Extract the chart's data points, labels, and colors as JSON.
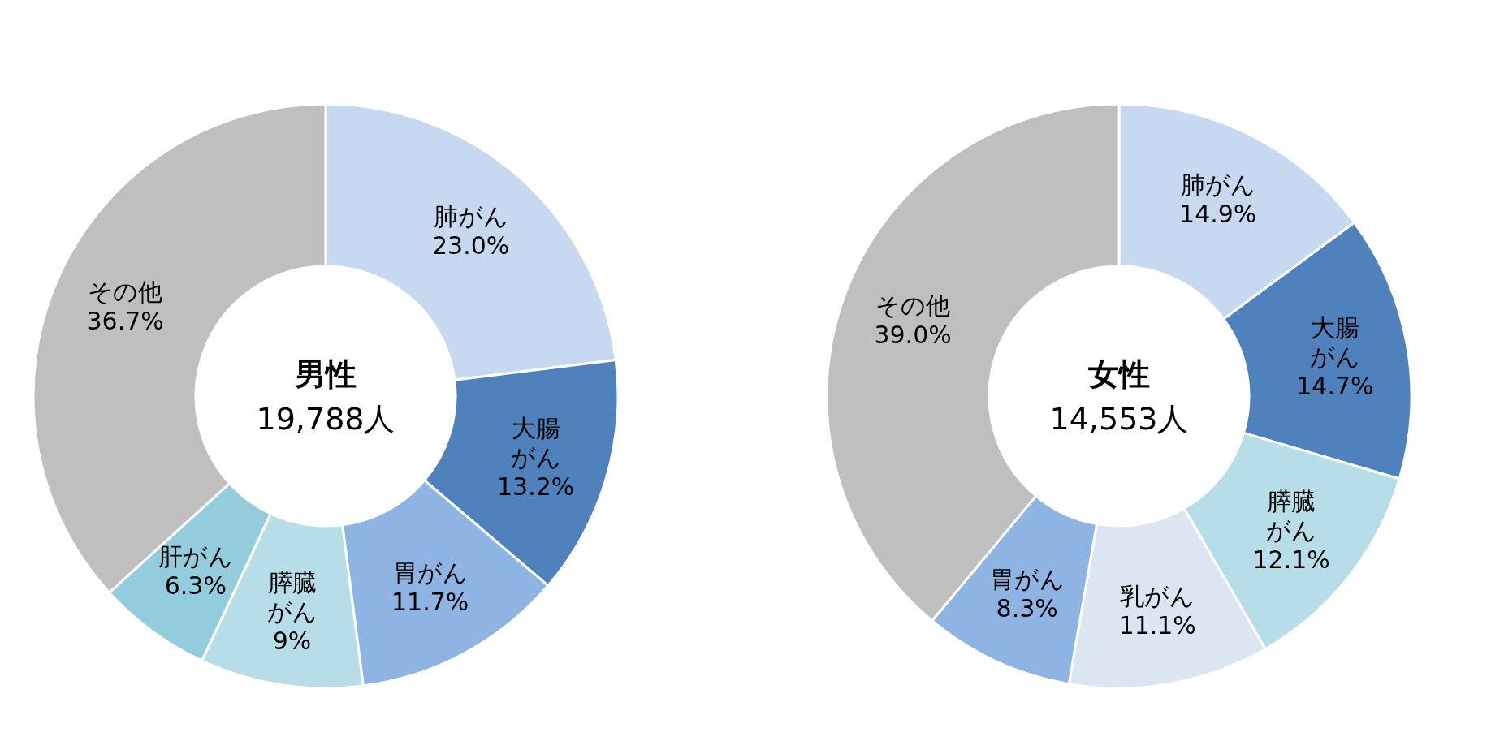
{
  "chart_data": [
    {
      "type": "donut",
      "title": "男性",
      "subtitle": "19,788人",
      "categories": [
        "肺がん",
        "大腸がん",
        "胃がん",
        "膵臓がん",
        "肝がん",
        "その他"
      ],
      "values": [
        23.0,
        13.2,
        11.7,
        9,
        6.3,
        36.7
      ],
      "value_labels": [
        "23.0%",
        "13.2%",
        "11.7%",
        "9%",
        "6.3%",
        "36.7%"
      ],
      "colors": [
        "#c6d9f1",
        "#4f81bd",
        "#8eb4e3",
        "#b7dee8",
        "#93cddd",
        "#bfbfbf"
      ],
      "legend": false
    },
    {
      "type": "donut",
      "title": "女性",
      "subtitle": "14,553人",
      "categories": [
        "肺がん",
        "大腸がん",
        "膵臓がん",
        "乳がん",
        "胃がん",
        "その他"
      ],
      "values": [
        14.9,
        14.7,
        12.1,
        11.1,
        8.3,
        39.0
      ],
      "value_labels": [
        "14.9%",
        "14.7%",
        "12.1%",
        "11.1%",
        "8.3%",
        "39.0%"
      ],
      "colors": [
        "#c6d9f1",
        "#4f81bd",
        "#b7dee8",
        "#dce6f2",
        "#8eb4e3",
        "#bfbfbf"
      ],
      "legend": false
    }
  ]
}
